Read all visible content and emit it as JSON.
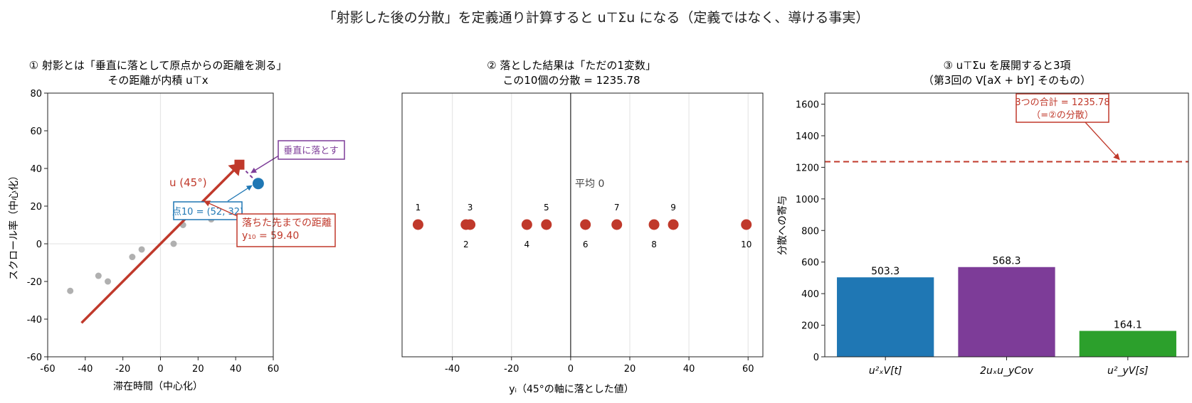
{
  "suptitle": "「射影した後の分散」を定義通り計算すると u⊤Σu になる（定義ではなく、導ける事実）",
  "colors": {
    "red": "#c0392b",
    "blue": "#1f77b4",
    "purple": "#7d3c98",
    "green": "#2ca02c",
    "grey": "#b0b0b0"
  },
  "chart_data": [
    {
      "type": "scatter",
      "title": [
        "① 射影とは「垂直に落として原点からの距離を測る」",
        "その距離が内積 u⊤x"
      ],
      "xlabel": "滞在時間（中心化）",
      "ylabel": "スクロール率（中心化）",
      "xlim": [
        -60,
        60
      ],
      "ylim": [
        -60,
        80
      ],
      "xticks": [
        -60,
        -40,
        -20,
        0,
        20,
        40,
        60
      ],
      "yticks": [
        -60,
        -40,
        -20,
        0,
        20,
        40,
        60,
        80
      ],
      "points": [
        {
          "x": -48,
          "y": -25
        },
        {
          "x": -33,
          "y": -17
        },
        {
          "x": -28,
          "y": -20
        },
        {
          "x": -15,
          "y": -7
        },
        {
          "x": -10,
          "y": -3
        },
        {
          "x": 7,
          "y": 0
        },
        {
          "x": 12,
          "y": 10
        },
        {
          "x": 27,
          "y": 13
        }
      ],
      "highlight_point": {
        "x": 52,
        "y": 32
      },
      "vector_label": "u (45°)",
      "vector_line": {
        "from": [
          -42,
          -42
        ],
        "to": [
          42,
          42
        ]
      },
      "projection_foot": {
        "x": 42,
        "y": 42
      },
      "point_label": "点10 = (52, 32)",
      "drop_label": "垂直に落とす",
      "distance_label_1": "落ちた先までの距離",
      "distance_label_2": "y₁₀ = 59.40"
    },
    {
      "type": "scatter",
      "title": [
        "② 落とした結果は「ただの1変数」",
        "この10個の分散 = 1235.78"
      ],
      "xlabel": "yᵢ（45°の軸に落とした値）",
      "xlim": [
        -57,
        65
      ],
      "xticks": [
        -40,
        -20,
        0,
        20,
        40,
        60
      ],
      "mean_label": "平均 0",
      "values": [
        -51.6,
        -35.4,
        -34.0,
        -14.8,
        -8.2,
        5.0,
        15.6,
        28.2,
        34.7,
        59.4
      ],
      "labels": [
        "1",
        "2",
        "3",
        "4",
        "5",
        "6",
        "7",
        "8",
        "9",
        "10"
      ]
    },
    {
      "type": "bar",
      "title": [
        "③ u⊤Σu を展開すると3項",
        "（第3回の V[aX + bY] そのもの）"
      ],
      "ylabel": "分散への寄与",
      "ylim": [
        0,
        1670
      ],
      "yticks": [
        0,
        200,
        400,
        600,
        800,
        1000,
        1200,
        1400,
        1600
      ],
      "categories": [
        "u²ₓV[t]",
        "2uₓu_yCov",
        "u²_yV[s]"
      ],
      "values": [
        503.3,
        568.3,
        164.1
      ],
      "value_labels": [
        "503.3",
        "568.3",
        "164.1"
      ],
      "total": 1235.78,
      "total_label_1": "3つの合計 = 1235.78",
      "total_label_2": "（=②の分散）"
    }
  ]
}
